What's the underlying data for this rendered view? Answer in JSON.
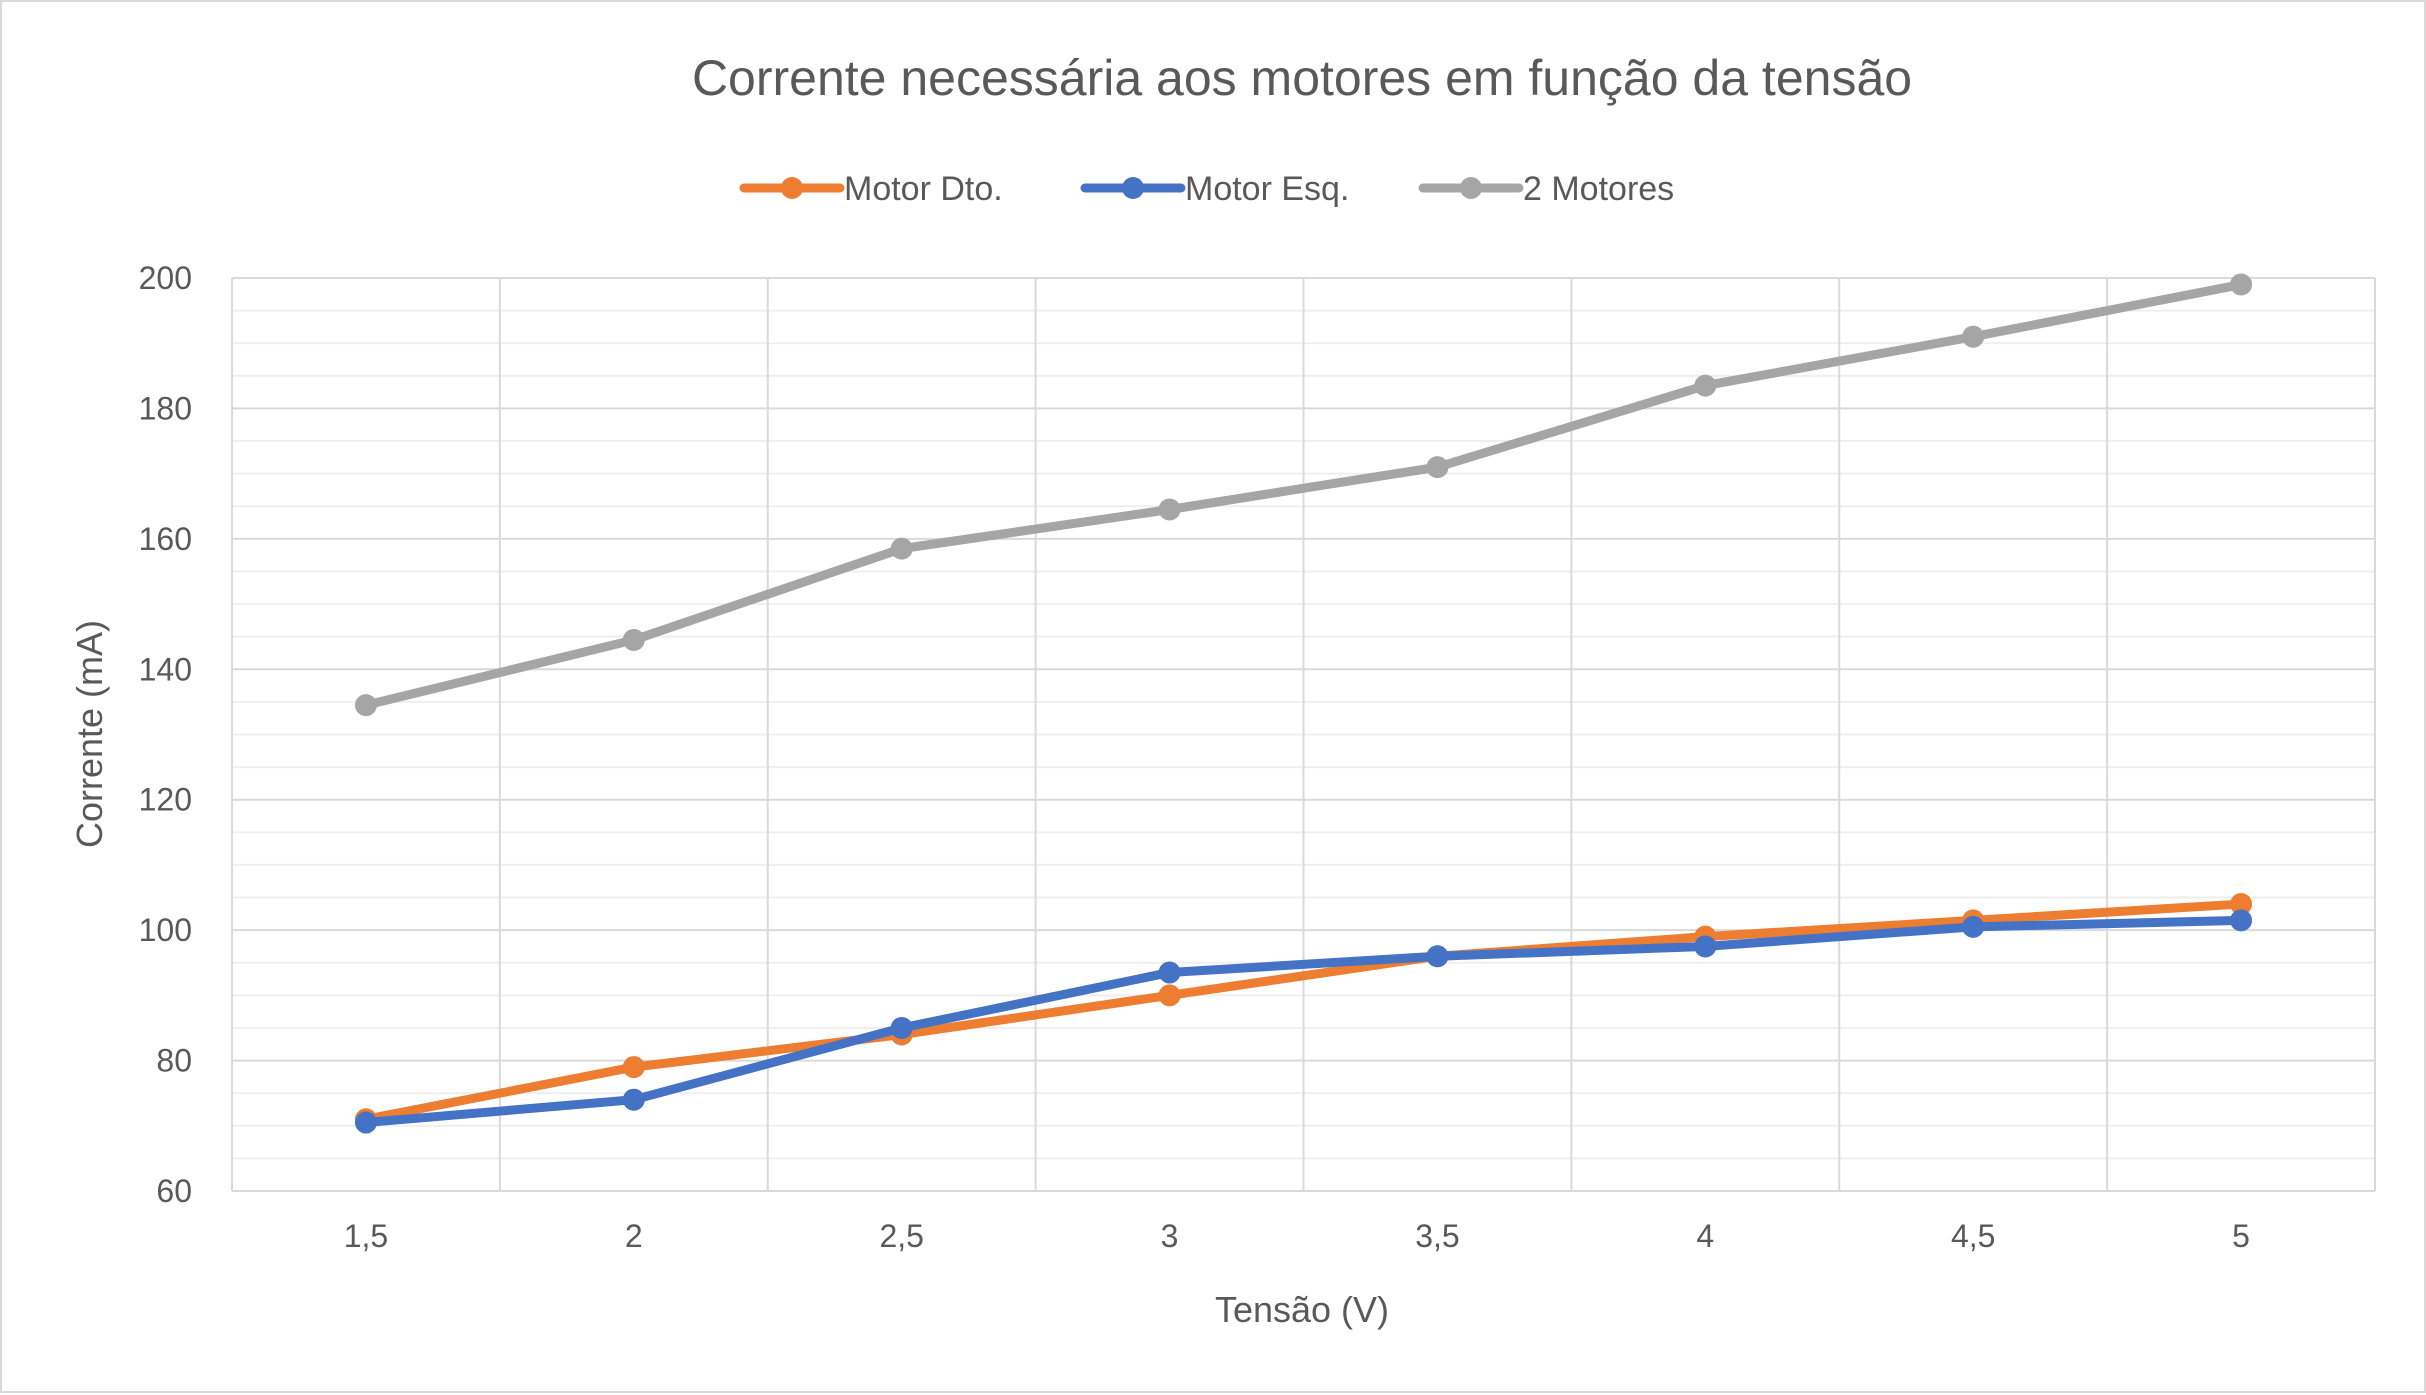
{
  "chart_data": {
    "type": "line",
    "title": "Corrente necessária aos motores em função da tensão",
    "xlabel": "Tensão (V)",
    "ylabel": "Corrente (mA)",
    "categories": [
      "1,5",
      "2",
      "2,5",
      "3",
      "3,5",
      "4",
      "4,5",
      "5"
    ],
    "ylim": [
      60,
      200
    ],
    "yticks": [
      "60",
      "80",
      "100",
      "120",
      "140",
      "160",
      "180",
      "200"
    ],
    "grid": true,
    "legend_position": "top",
    "series": [
      {
        "name": "Motor Dto.",
        "color": "#ED7D31",
        "values": [
          71,
          79,
          84,
          90,
          96,
          99,
          101.5,
          104
        ]
      },
      {
        "name": "Motor Esq.",
        "color": "#4472C4",
        "values": [
          70.5,
          74,
          85,
          93.5,
          96,
          97.5,
          100.5,
          101.5
        ]
      },
      {
        "name": "2 Motores",
        "color": "#A5A5A5",
        "values": [
          134.5,
          144.5,
          158.5,
          164.5,
          171,
          183.5,
          191,
          199
        ]
      }
    ]
  }
}
